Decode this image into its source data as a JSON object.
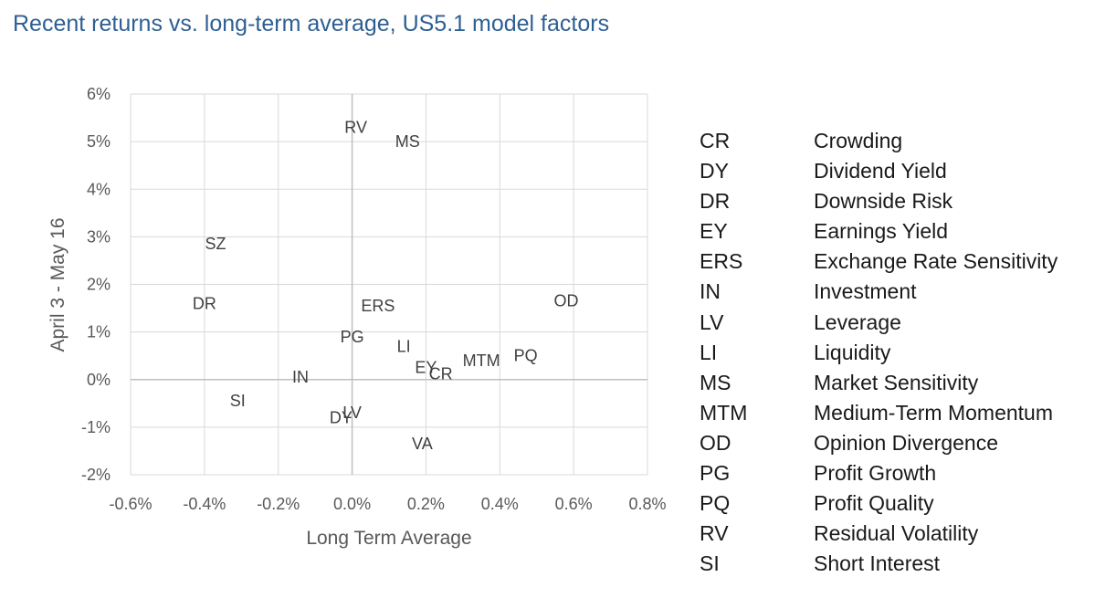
{
  "title": "Recent returns vs. long-term average, US5.1 model factors",
  "chart_data": {
    "type": "scatter",
    "title": "Recent returns vs. long-term average, US5.1 model factors",
    "xlabel": "Long Term Average",
    "ylabel": "April 3 - May 16",
    "xlim": [
      -0.6,
      0.8
    ],
    "ylim": [
      -2,
      6
    ],
    "x_ticks": [
      "-0.6%",
      "-0.4%",
      "-0.2%",
      "0.0%",
      "0.2%",
      "0.4%",
      "0.6%",
      "0.8%"
    ],
    "y_ticks": [
      "6%",
      "5%",
      "4%",
      "3%",
      "2%",
      "1%",
      "0%",
      "-1%",
      "-2%"
    ],
    "x_unit": "%",
    "y_unit": "%",
    "grid": true,
    "points": [
      {
        "label": "RV",
        "x": 0.01,
        "y": 5.3
      },
      {
        "label": "MS",
        "x": 0.15,
        "y": 5.0
      },
      {
        "label": "SZ",
        "x": -0.37,
        "y": 2.85
      },
      {
        "label": "DR",
        "x": -0.4,
        "y": 1.6
      },
      {
        "label": "ERS",
        "x": 0.07,
        "y": 1.55
      },
      {
        "label": "OD",
        "x": 0.58,
        "y": 1.65
      },
      {
        "label": "PG",
        "x": 0.0,
        "y": 0.9
      },
      {
        "label": "LI",
        "x": 0.14,
        "y": 0.7
      },
      {
        "label": "PQ",
        "x": 0.47,
        "y": 0.5
      },
      {
        "label": "MTM",
        "x": 0.35,
        "y": 0.4
      },
      {
        "label": "EY",
        "x": 0.2,
        "y": 0.25
      },
      {
        "label": "CR",
        "x": 0.24,
        "y": 0.12
      },
      {
        "label": "IN",
        "x": -0.14,
        "y": 0.05
      },
      {
        "label": "SI",
        "x": -0.31,
        "y": -0.45
      },
      {
        "label": "LV",
        "x": 0.0,
        "y": -0.7
      },
      {
        "label": "DY",
        "x": -0.03,
        "y": -0.8
      },
      {
        "label": "VA",
        "x": 0.19,
        "y": -1.35
      }
    ]
  },
  "legend": [
    {
      "code": "CR",
      "name": "Crowding"
    },
    {
      "code": "DY",
      "name": "Dividend Yield"
    },
    {
      "code": "DR",
      "name": "Downside Risk"
    },
    {
      "code": "EY",
      "name": "Earnings Yield"
    },
    {
      "code": "ERS",
      "name": "Exchange Rate Sensitivity"
    },
    {
      "code": "IN",
      "name": "Investment"
    },
    {
      "code": "LV",
      "name": "Leverage"
    },
    {
      "code": "LI",
      "name": "Liquidity"
    },
    {
      "code": "MS",
      "name": "Market Sensitivity"
    },
    {
      "code": "MTM",
      "name": "Medium-Term Momentum"
    },
    {
      "code": "OD",
      "name": "Opinion Divergence"
    },
    {
      "code": "PG",
      "name": "Profit Growth"
    },
    {
      "code": "PQ",
      "name": "Profit Quality"
    },
    {
      "code": "RV",
      "name": "Residual Volatility"
    },
    {
      "code": "SI",
      "name": "Short Interest"
    }
  ],
  "colors": {
    "title": "#2e5f93",
    "grid": "#d9d9d9",
    "axis_zero": "#bfbfbf",
    "tick_text": "#595959",
    "point_label": "#404040"
  }
}
